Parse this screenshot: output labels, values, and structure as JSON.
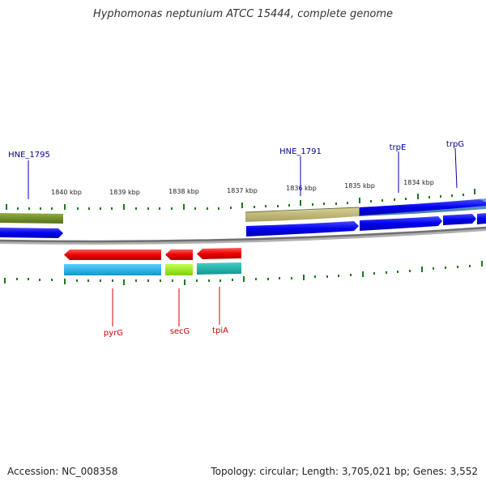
{
  "title": "Hyphomonas neptunium ATCC 15444, complete genome",
  "footer": {
    "accession": "Accession: NC_008358",
    "topology": "Topology: circular; Length: 3,705,021 bp; Genes: 3,552"
  },
  "axis": {
    "tick_labels": [
      "1840 kbp",
      "1839 kbp",
      "1838 kbp",
      "1837 kbp",
      "1836 kbp",
      "1835 kbp",
      "1834 kbp"
    ]
  },
  "genes_top": [
    {
      "label": "HNE_1795",
      "color": "#00008b"
    },
    {
      "label": "HNE_1791",
      "color": "#00008b"
    },
    {
      "label": "trpE",
      "color": "#00008b"
    },
    {
      "label": "trpG",
      "color": "#00008b"
    }
  ],
  "genes_bottom": [
    {
      "label": "pyrG",
      "color": "#cc0000"
    },
    {
      "label": "secG",
      "color": "#cc0000"
    },
    {
      "label": "tpiA",
      "color": "#cc0000"
    }
  ],
  "colors": {
    "forward_cds": "#0000ee",
    "reverse_cds": "#ee0000",
    "tick": "#1a7a1a",
    "backbone": "#808080",
    "cog_olive": "#6b8e23",
    "cog_khaki": "#bdb76b",
    "cog_steelblue": "#4682b4",
    "cog_cyan": "#1ab0e8",
    "cog_lime": "#99ee22",
    "cog_teal": "#20b2aa"
  }
}
